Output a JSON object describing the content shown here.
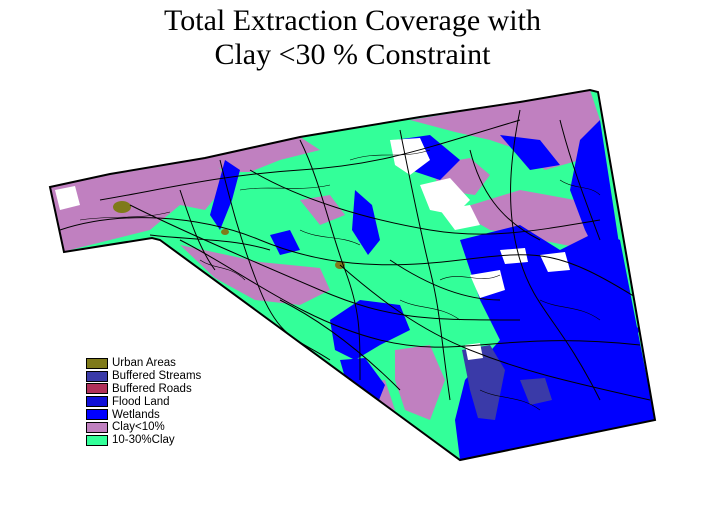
{
  "title": {
    "line1": "Total Extraction Coverage with",
    "line2": "Clay <30 % Constraint"
  },
  "legend": [
    {
      "label": "Urban Areas",
      "color": "#7f7a1a"
    },
    {
      "label": "Buffered Streams",
      "color": "#3a3aa8"
    },
    {
      "label": "Buffered Roads",
      "color": "#b0305a"
    },
    {
      "label": "Flood Land",
      "color": "#1010d8"
    },
    {
      "label": "Wetlands",
      "color": "#0000ff"
    },
    {
      "label": "Clay<10%",
      "color": "#c080c0"
    },
    {
      "label": "10-30%Clay",
      "color": "#33ff99"
    }
  ],
  "colors": {
    "outline": "#000000",
    "background": "#ffffff",
    "feature_lines": "#000000"
  }
}
